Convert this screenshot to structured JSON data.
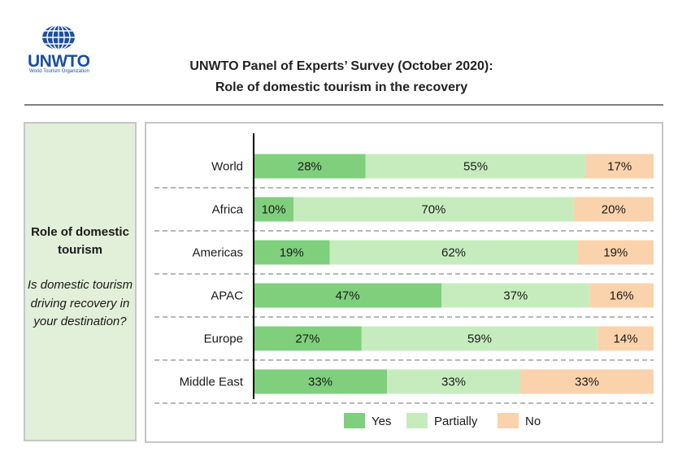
{
  "logo": {
    "name": "UNWTO",
    "subtitle": "World Tourism Organization"
  },
  "title": {
    "line1": "UNWTO Panel of Experts’ Survey (October 2020):",
    "line2": "Role of domestic tourism in the recovery"
  },
  "side_panel": {
    "heading": "Role of domestic tourism",
    "question": "Is domestic tourism driving recovery in your destination?"
  },
  "colors": {
    "yes": "#7fcf7d",
    "partially": "#c6ecbe",
    "no": "#fad2ac",
    "axis": "#000000",
    "separator": "#8c8c8c"
  },
  "chart_data": {
    "type": "bar",
    "orientation": "horizontal",
    "stacked": true,
    "categories": [
      "World",
      "Africa",
      "Americas",
      "APAC",
      "Europe",
      "Middle East"
    ],
    "series": [
      {
        "name": "Yes",
        "values": [
          28,
          10,
          19,
          47,
          27,
          33
        ]
      },
      {
        "name": "Partially",
        "values": [
          55,
          70,
          62,
          37,
          59,
          33
        ]
      },
      {
        "name": "No",
        "values": [
          17,
          20,
          19,
          16,
          14,
          33
        ]
      }
    ],
    "data_labels": [
      [
        "28%",
        "10%",
        "19%",
        "47%",
        "27%",
        "33%"
      ],
      [
        "55%",
        "70%",
        "62%",
        "37%",
        "59%",
        "33%"
      ],
      [
        "17%",
        "20%",
        "19%",
        "16%",
        "14%",
        "33%"
      ]
    ],
    "xlim": [
      0,
      100
    ],
    "legend": "bottom"
  }
}
